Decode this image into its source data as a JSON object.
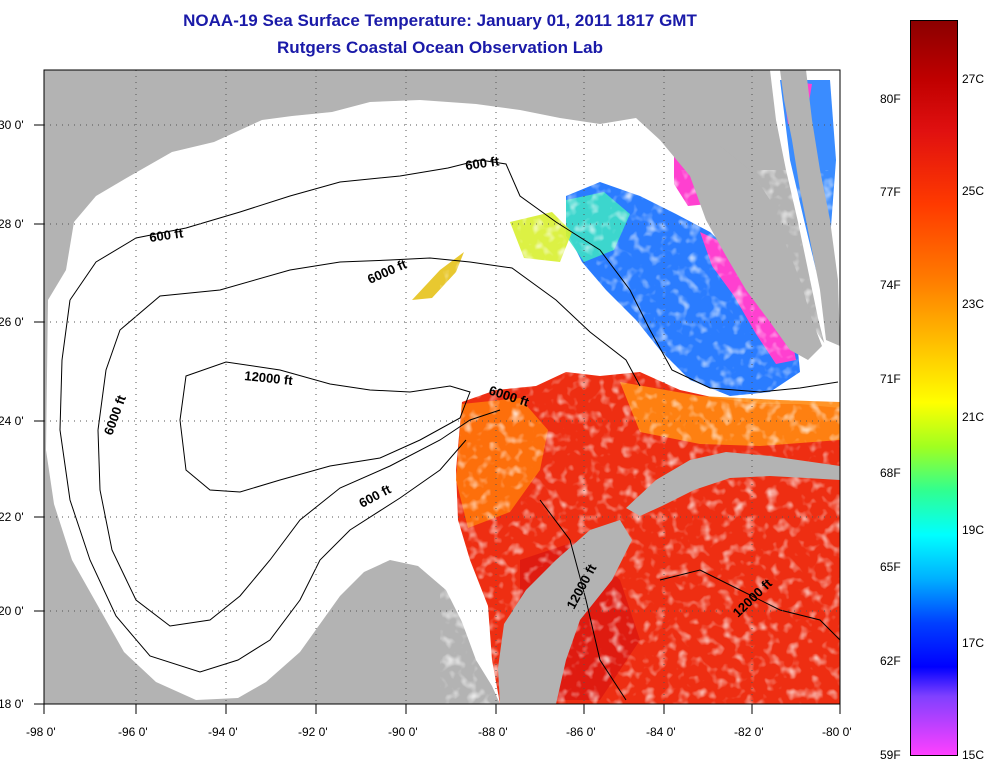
{
  "title_line1": "NOAA-19 Sea Surface Temperature:  January 01, 2011 1817 GMT",
  "title_line2": "Rutgers Coastal Ocean Observation Lab",
  "y_ticks": [
    "30 0'",
    "28 0'",
    "26 0'",
    "24 0'",
    "22 0'",
    "20 0'",
    "18 0'"
  ],
  "x_ticks": [
    "-98 0'",
    "-96 0'",
    "-94 0'",
    "-92 0'",
    "-90 0'",
    "-88 0'",
    "-86 0'",
    "-84 0'",
    "-82 0'",
    "-80 0'"
  ],
  "contour_labels": [
    "600 ft",
    "600 ft",
    "6000 ft",
    "6000 ft",
    "12000 ft",
    "6000 ft",
    "600 ft",
    "12000 ft",
    "12000 ft"
  ],
  "colorbar": {
    "fahrenheit": [
      "80F",
      "77F",
      "74F",
      "71F",
      "68F",
      "65F",
      "62F",
      "59F"
    ],
    "celsius": [
      "27C",
      "25C",
      "23C",
      "21C",
      "19C",
      "17C",
      "15C"
    ]
  },
  "colors": {
    "title": "#1a1aa8",
    "land": "#b3b3b3",
    "no_data": "#ffffff"
  }
}
